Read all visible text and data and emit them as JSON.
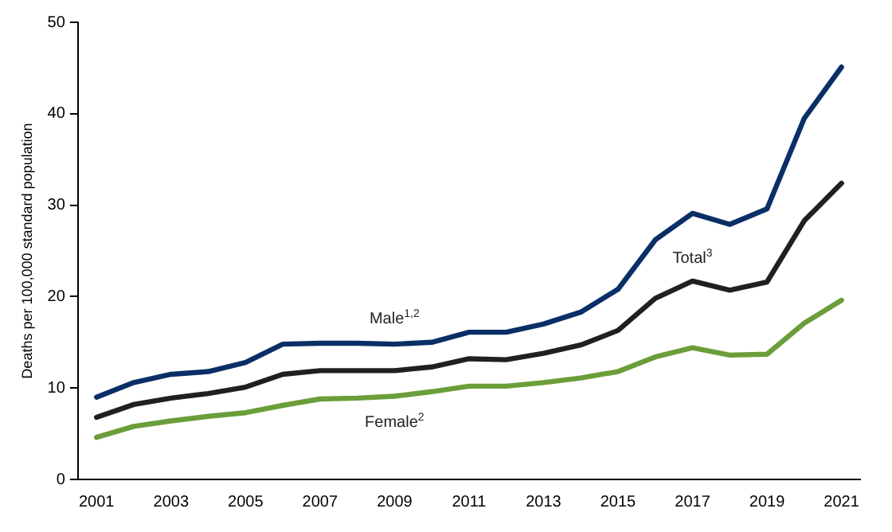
{
  "chart_data": {
    "type": "line",
    "ylabel": "Deaths per 100,000 standard population",
    "categories": [
      "2001",
      null,
      "2003",
      null,
      "2005",
      null,
      "2007",
      null,
      "2009",
      null,
      "2011",
      null,
      "2013",
      null,
      "2015",
      null,
      "2017",
      null,
      "2019",
      null,
      "2021"
    ],
    "series": [
      {
        "name": "Male$^{1,2}$",
        "color": "#0a2f66",
        "values": [
          9.0,
          10.6,
          11.5,
          11.8,
          12.8,
          14.8,
          14.9,
          14.9,
          14.8,
          15.0,
          16.1,
          16.1,
          17.0,
          18.3,
          20.8,
          26.2,
          29.1,
          27.9,
          29.6,
          39.5,
          45.1
        ]
      },
      {
        "name": "Total$^{3}$",
        "color": "#231f20",
        "values": [
          6.8,
          8.2,
          8.9,
          9.4,
          10.1,
          11.5,
          11.9,
          11.9,
          11.9,
          12.3,
          13.2,
          13.1,
          13.8,
          14.7,
          16.3,
          19.8,
          21.7,
          20.7,
          21.6,
          28.3,
          32.4
        ]
      },
      {
        "name": "Female$^{2}$",
        "color": "#6b9e3a",
        "values": [
          4.6,
          5.8,
          6.4,
          6.9,
          7.3,
          8.1,
          8.8,
          8.9,
          9.1,
          9.6,
          10.2,
          10.2,
          10.6,
          11.1,
          11.8,
          13.4,
          14.4,
          13.6,
          13.7,
          17.1,
          19.6
        ]
      }
    ],
    "ylim": [
      0,
      50
    ],
    "yticks": [
      0,
      10,
      20,
      30,
      40,
      50
    ],
    "grid": false,
    "legend": false,
    "marker": "none",
    "line_style": "solid"
  }
}
